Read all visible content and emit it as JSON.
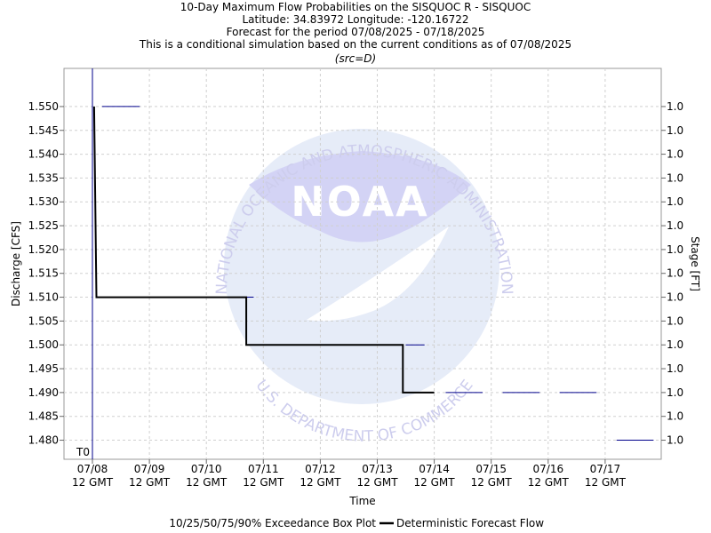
{
  "chart_data": {
    "type": "line",
    "title_lines": [
      "10-Day Maximum Flow Probabilities on the SISQUOC R - SISQUOC",
      "Latitude: 34.83972 Longitude: -120.16722",
      "Forecast for the period 07/08/2025 - 07/18/2025",
      "This is a conditional simulation based on the current conditions as of 07/08/2025"
    ],
    "subtitle": "(src=D)",
    "xlabel": "Time",
    "ylabel": "Discharge [CFS]",
    "y2label": "Stage [FT]",
    "x_ticks": [
      {
        "d": "07/08",
        "t": "12 GMT"
      },
      {
        "d": "07/09",
        "t": "12 GMT"
      },
      {
        "d": "07/10",
        "t": "12 GMT"
      },
      {
        "d": "07/11",
        "t": "12 GMT"
      },
      {
        "d": "07/12",
        "t": "12 GMT"
      },
      {
        "d": "07/13",
        "t": "12 GMT"
      },
      {
        "d": "07/14",
        "t": "12 GMT"
      },
      {
        "d": "07/15",
        "t": "12 GMT"
      },
      {
        "d": "07/16",
        "t": "12 GMT"
      },
      {
        "d": "07/17",
        "t": "12 GMT"
      }
    ],
    "y_ticks": [
      "1.480",
      "1.485",
      "1.490",
      "1.495",
      "1.500",
      "1.505",
      "1.510",
      "1.515",
      "1.520",
      "1.525",
      "1.530",
      "1.535",
      "1.540",
      "1.545",
      "1.550"
    ],
    "y2_tick": "1.0",
    "ylim": [
      1.476,
      1.558
    ],
    "t0_label": "T0",
    "t0_x": 0,
    "deterministic_series": {
      "name": "Deterministic Forecast Flow",
      "x": [
        0.03,
        0.07,
        0.07,
        2.7,
        2.7,
        5.45,
        5.45,
        6.0
      ],
      "y": [
        1.55,
        1.51,
        1.51,
        1.51,
        1.5,
        1.5,
        1.49,
        1.49
      ]
    },
    "exceedance_ticks": [
      {
        "x0": 0.17,
        "x1": 0.83,
        "y": 1.55
      },
      {
        "x0": 2.5,
        "x1": 2.83,
        "y": 1.51
      },
      {
        "x0": 5.5,
        "x1": 5.83,
        "y": 1.5
      },
      {
        "x0": 6.2,
        "x1": 6.85,
        "y": 1.49
      },
      {
        "x0": 7.2,
        "x1": 7.85,
        "y": 1.49
      },
      {
        "x0": 8.2,
        "x1": 8.85,
        "y": 1.49
      },
      {
        "x0": 9.2,
        "x1": 9.85,
        "y": 1.48
      }
    ],
    "legend": [
      {
        "label": "10/25/50/75/90% Exceedance Box Plot"
      },
      {
        "label": "Deterministic Forecast Flow"
      }
    ],
    "watermark": {
      "text": "NOAA",
      "arc_text": "NATIONAL OCEANIC AND ATMOSPHERIC ADMINISTRATION",
      "bottom_text": "U.S. DEPARTMENT OF COMMERCE"
    },
    "colors": {
      "deterministic": "#000000",
      "exceedance": "#00008b",
      "grid": "#d0d0d0",
      "t0": "#00008b"
    }
  }
}
